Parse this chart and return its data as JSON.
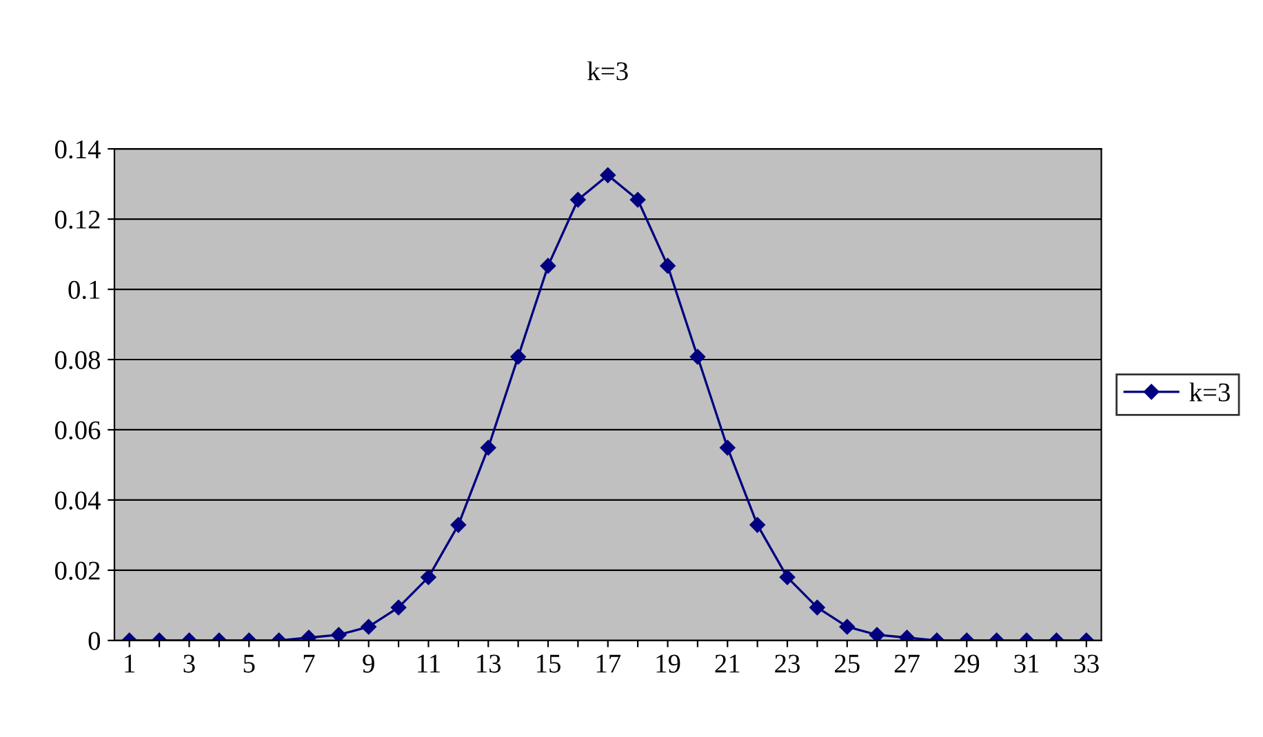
{
  "chart_data": {
    "type": "line",
    "title": "k=3",
    "categories": [
      "1",
      null,
      "3",
      null,
      "5",
      null,
      "7",
      null,
      "9",
      null,
      "11",
      null,
      "13",
      null,
      "15",
      null,
      "17",
      null,
      "19",
      null,
      "21",
      null,
      "23",
      null,
      "25",
      null,
      "27",
      null,
      "29",
      null,
      "31",
      null,
      "33"
    ],
    "series": [
      {
        "name": "k=3",
        "color": "#000080",
        "values": [
          0,
          0,
          0,
          0,
          0,
          0,
          0.0008,
          0.0016,
          0.0039,
          0.0094,
          0.018,
          0.0329,
          0.0549,
          0.0808,
          0.1067,
          0.1255,
          0.1325,
          0.1255,
          0.1067,
          0.0808,
          0.0549,
          0.0329,
          0.018,
          0.0094,
          0.0039,
          0.0016,
          0.0008,
          0,
          0,
          0,
          0,
          0,
          0
        ]
      }
    ],
    "ylim": [
      0,
      0.14
    ],
    "yticks": [
      0,
      0.02,
      0.04,
      0.06,
      0.08,
      0.1,
      0.12,
      0.14
    ],
    "grid": "y",
    "legend": "right",
    "marker": "diamond",
    "line_style": "solid"
  }
}
